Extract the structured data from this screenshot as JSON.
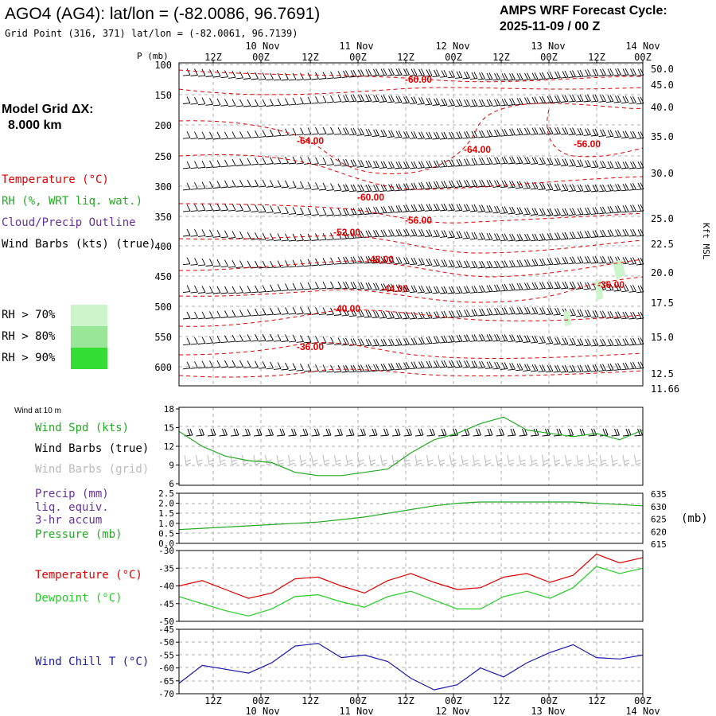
{
  "header": {
    "station_title": "AGO4 (AG4):  lat/lon = (-82.0086, 96.7691)",
    "grid_point": "Grid Point (316, 371) lat/lon = (-82.0061, 96.7139)",
    "cycle_label": "AMPS WRF Forecast Cycle:",
    "cycle_value": "2025-11-09 / 00  Z",
    "model_grid_label": "Model Grid ΔX:",
    "model_grid_value": "8.000 km"
  },
  "legend": {
    "temperature": "Temperature (°C)",
    "rh": "RH (%, WRT liq. wat.)",
    "cloud": "Cloud/Precip Outline",
    "wind_barbs": "Wind Barbs (kts) (true)",
    "rh70": "RH > 70%",
    "rh80": "RH > 80%",
    "rh90": "RH > 90%",
    "wind10m": "Wind at 10 m",
    "wind_spd": "Wind Spd (kts)",
    "barbs_true": "Wind Barbs (true)",
    "barbs_grid": "Wind Barbs (grid)",
    "precip1": "Precip (mm)",
    "precip2": "liq. equiv.",
    "precip3": "3-hr accum",
    "pressure": "Pressure (mb)",
    "temp2": "Temperature (°C)",
    "dewpoint": "Dewpoint (°C)",
    "windchill": "Wind Chill T (°C)",
    "mb_unit": "(mb)"
  },
  "colors": {
    "temperature": "#e00000",
    "rh": "#22aa22",
    "cloud": "#663399",
    "barbs": "#000000",
    "barbs_grid": "#bbbbbb",
    "rh70": "#ccf5cc",
    "rh80": "#99e699",
    "rh90": "#33dd33",
    "dewpoint": "#22cc22",
    "windchill": "#1a1aaa",
    "pressure": "#22aa22"
  },
  "time_axis": {
    "tick_labels": [
      "12Z",
      "00Z",
      "12Z",
      "00Z",
      "12Z",
      "00Z",
      "12Z",
      "00Z",
      "12Z",
      "00Z"
    ],
    "day_labels": [
      "10 Nov",
      "11 Nov",
      "12 Nov",
      "13 Nov",
      "14 Nov"
    ]
  },
  "chart_data": [
    {
      "type": "line",
      "panel": "cross-section",
      "ylabel": "P (mb)",
      "yticks": [
        "100",
        "150",
        "200",
        "250",
        "300",
        "350",
        "400",
        "450",
        "500",
        "550",
        "600"
      ],
      "right_ylabel": "Kft MSL",
      "right_ticks": [
        "50.0",
        "45.0",
        "40.0",
        "35.0",
        "30.0",
        "25.0",
        "22.5",
        "20.0",
        "17.5",
        "15.0",
        "12.5",
        "11.66"
      ],
      "contour_labels": [
        "-60.00",
        "-64.00",
        "-64.00",
        "-56.00",
        "-60.00",
        "-56.00",
        "-52.00",
        "-48.00",
        "-44.00",
        "-36.00",
        "-40.00",
        "-36.00"
      ]
    },
    {
      "type": "line",
      "panel": "wind speed",
      "yticks": [
        "18",
        "15",
        "12",
        "9",
        "6"
      ],
      "ylim": [
        6,
        18
      ],
      "x": [
        0,
        6,
        12,
        18,
        24,
        30,
        36,
        42,
        48,
        54,
        60,
        66,
        72,
        78,
        84,
        90,
        96,
        102,
        108,
        114,
        120
      ],
      "series": [
        {
          "name": "Wind Spd (kts)",
          "values": [
            14.3,
            12.0,
            10.5,
            9.8,
            9.5,
            8.0,
            7.5,
            7.5,
            8.0,
            8.5,
            11.0,
            13.0,
            14.0,
            15.5,
            16.5,
            14.5,
            14.0,
            13.5,
            14.0,
            13.0,
            14.5
          ]
        }
      ]
    },
    {
      "type": "line",
      "panel": "precip / pressure",
      "yticks": [
        "2.5",
        "2.0",
        "1.5",
        "1.0",
        "0.5",
        "0.0"
      ],
      "right_ticks": [
        "635",
        "630",
        "625",
        "620",
        "615"
      ],
      "ylim": [
        0,
        2.5
      ],
      "right_ylim": [
        615,
        635
      ],
      "series": [
        {
          "name": "Pressure (mb)",
          "values": [
            620.5,
            621.0,
            621.5,
            622.0,
            622.5,
            623.0,
            623.5,
            624.5,
            625.5,
            627.0,
            628.5,
            630.0,
            631.0,
            631.5,
            631.5,
            631.5,
            631.5,
            631.5,
            631.0,
            630.5,
            630.0
          ]
        }
      ]
    },
    {
      "type": "line",
      "panel": "temperature / dewpoint",
      "yticks": [
        "-30",
        "-35",
        "-40",
        "-45",
        "-50"
      ],
      "ylim": [
        -50,
        -30
      ],
      "series": [
        {
          "name": "Temperature (°C)",
          "values": [
            -40.0,
            -38.5,
            -41.0,
            -43.5,
            -42.0,
            -38.0,
            -37.5,
            -40.0,
            -42.0,
            -38.5,
            -36.5,
            -39.0,
            -41.0,
            -40.5,
            -37.5,
            -36.5,
            -39.0,
            -37.0,
            -31.0,
            -33.5,
            -32.0
          ]
        },
        {
          "name": "Dewpoint (°C)",
          "values": [
            -43.0,
            -45.0,
            -47.0,
            -48.5,
            -46.5,
            -43.0,
            -42.5,
            -44.5,
            -46.0,
            -43.0,
            -41.5,
            -44.0,
            -46.5,
            -46.5,
            -43.0,
            -41.5,
            -43.5,
            -40.5,
            -34.5,
            -36.5,
            -35.0
          ]
        }
      ]
    },
    {
      "type": "line",
      "panel": "wind chill",
      "yticks": [
        "-45",
        "-50",
        "-55",
        "-60",
        "-65",
        "-70"
      ],
      "ylim": [
        -70,
        -45
      ],
      "series": [
        {
          "name": "Wind Chill T (°C)",
          "values": [
            -66.0,
            -59.0,
            -60.5,
            -62.0,
            -58.0,
            -51.5,
            -50.5,
            -56.0,
            -55.0,
            -57.5,
            -64.0,
            -68.5,
            -66.5,
            -60.0,
            -63.5,
            -58.0,
            -54.0,
            -51.0,
            -56.0,
            -56.5,
            -55.0
          ]
        }
      ]
    }
  ]
}
